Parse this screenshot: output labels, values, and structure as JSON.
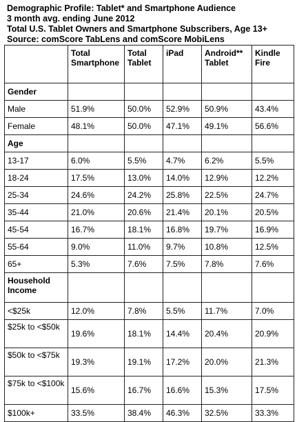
{
  "header": {
    "line1": "Demographic Profile: Tablet* and Smartphone Audience",
    "line2": "3 month avg. ending June 2012",
    "line3": "Total U.S. Tablet Owners and Smartphone Subscribers, Age 13+",
    "line4": "Source: comScore TabLens and comScore MobiLens"
  },
  "columns": [
    "",
    "Total Smartphone",
    "Total Tablet",
    "iPad",
    "Android** Tablet",
    "Kindle Fire"
  ],
  "sections": [
    {
      "title": "Gender",
      "rows": [
        {
          "label": "Male",
          "values": [
            "51.9%",
            "50.0%",
            "52.9%",
            "50.9%",
            "43.4%"
          ]
        },
        {
          "label": "Female",
          "values": [
            "48.1%",
            "50.0%",
            "47.1%",
            "49.1%",
            "56.6%"
          ]
        }
      ]
    },
    {
      "title": "Age",
      "rows": [
        {
          "label": "13-17",
          "values": [
            "6.0%",
            "5.5%",
            "4.7%",
            "6.2%",
            "5.5%"
          ]
        },
        {
          "label": "18-24",
          "values": [
            "17.5%",
            "13.0%",
            "14.0%",
            "12.9%",
            "12.2%"
          ]
        },
        {
          "label": "25-34",
          "values": [
            "24.6%",
            "24.2%",
            "25.8%",
            "22.5%",
            "24.7%"
          ]
        },
        {
          "label": "35-44",
          "values": [
            "21.0%",
            "20.6%",
            "21.4%",
            "20.1%",
            "20.5%"
          ]
        },
        {
          "label": "45-54",
          "values": [
            "16.7%",
            "18.1%",
            "16.8%",
            "19.7%",
            "16.9%"
          ]
        },
        {
          "label": "55-64",
          "values": [
            "9.0%",
            "11.0%",
            "9.7%",
            "10.8%",
            "12.5%"
          ]
        },
        {
          "label": "65+",
          "values": [
            "5.3%",
            "7.6%",
            "7.5%",
            "7.8%",
            "7.6%"
          ]
        }
      ]
    },
    {
      "title": "Household Income",
      "rows": [
        {
          "label": "<$25k",
          "values": [
            "12.0%",
            "7.8%",
            "5.5%",
            "11.7%",
            "7.0%"
          ]
        },
        {
          "label": "$25k to <$50k",
          "values": [
            "19.6%",
            "18.1%",
            "14.4%",
            "20.4%",
            "20.9%"
          ]
        },
        {
          "label": "$50k to <$75k",
          "values": [
            "19.3%",
            "19.1%",
            "17.2%",
            "20.0%",
            "21.3%"
          ]
        },
        {
          "label": "$75k to <$100k",
          "values": [
            "15.6%",
            "16.7%",
            "16.6%",
            "15.3%",
            "17.5%"
          ]
        },
        {
          "label": "$100k+",
          "values": [
            "33.5%",
            "38.4%",
            "46.3%",
            "32.5%",
            "33.3%"
          ]
        }
      ]
    }
  ]
}
